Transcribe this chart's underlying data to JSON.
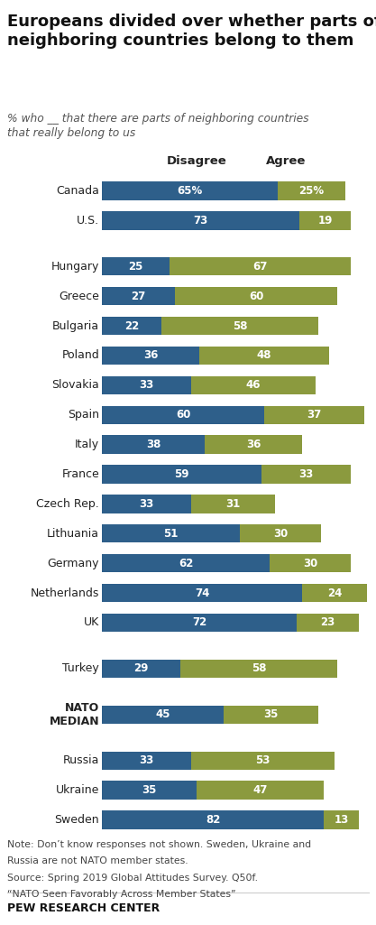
{
  "title": "Europeans divided over whether parts of\nneighboring countries belong to them",
  "subtitle": "% who __ that there are parts of neighboring countries\nthat really belong to us",
  "col_headers": [
    "Disagree",
    "Agree"
  ],
  "blue_color": "#2E5F8A",
  "olive_color": "#8B9A3E",
  "groups": [
    {
      "countries": [
        {
          "name": "Canada",
          "disagree": 65,
          "agree": 25,
          "disagree_label": "65%",
          "agree_label": "25%"
        },
        {
          "name": "U.S.",
          "disagree": 73,
          "agree": 19,
          "disagree_label": "73",
          "agree_label": "19"
        }
      ]
    },
    {
      "countries": [
        {
          "name": "Hungary",
          "disagree": 25,
          "agree": 67,
          "disagree_label": "25",
          "agree_label": "67"
        },
        {
          "name": "Greece",
          "disagree": 27,
          "agree": 60,
          "disagree_label": "27",
          "agree_label": "60"
        },
        {
          "name": "Bulgaria",
          "disagree": 22,
          "agree": 58,
          "disagree_label": "22",
          "agree_label": "58"
        },
        {
          "name": "Poland",
          "disagree": 36,
          "agree": 48,
          "disagree_label": "36",
          "agree_label": "48"
        },
        {
          "name": "Slovakia",
          "disagree": 33,
          "agree": 46,
          "disagree_label": "33",
          "agree_label": "46"
        },
        {
          "name": "Spain",
          "disagree": 60,
          "agree": 37,
          "disagree_label": "60",
          "agree_label": "37"
        },
        {
          "name": "Italy",
          "disagree": 38,
          "agree": 36,
          "disagree_label": "38",
          "agree_label": "36"
        },
        {
          "name": "France",
          "disagree": 59,
          "agree": 33,
          "disagree_label": "59",
          "agree_label": "33"
        },
        {
          "name": "Czech Rep.",
          "disagree": 33,
          "agree": 31,
          "disagree_label": "33",
          "agree_label": "31"
        },
        {
          "name": "Lithuania",
          "disagree": 51,
          "agree": 30,
          "disagree_label": "51",
          "agree_label": "30"
        },
        {
          "name": "Germany",
          "disagree": 62,
          "agree": 30,
          "disagree_label": "62",
          "agree_label": "30"
        },
        {
          "name": "Netherlands",
          "disagree": 74,
          "agree": 24,
          "disagree_label": "74",
          "agree_label": "24"
        },
        {
          "name": "UK",
          "disagree": 72,
          "agree": 23,
          "disagree_label": "72",
          "agree_label": "23"
        }
      ]
    },
    {
      "countries": [
        {
          "name": "Turkey",
          "disagree": 29,
          "agree": 58,
          "disagree_label": "29",
          "agree_label": "58"
        }
      ]
    },
    {
      "countries": [
        {
          "name": "NATO\nMEDIAN",
          "disagree": 45,
          "agree": 35,
          "disagree_label": "45",
          "agree_label": "35",
          "bold": true
        }
      ]
    },
    {
      "countries": [
        {
          "name": "Russia",
          "disagree": 33,
          "agree": 53,
          "disagree_label": "33",
          "agree_label": "53"
        },
        {
          "name": "Ukraine",
          "disagree": 35,
          "agree": 47,
          "disagree_label": "35",
          "agree_label": "47"
        },
        {
          "name": "Sweden",
          "disagree": 82,
          "agree": 13,
          "disagree_label": "82",
          "agree_label": "13"
        }
      ]
    }
  ],
  "note1": "Note: Don’t know responses not shown. Sweden, Ukraine and",
  "note2": "Russia are not NATO member states.",
  "note3": "Source: Spring 2019 Global Attitudes Survey. Q50f.",
  "note4": "“NATO Seen Favorably Across Member States”",
  "source_bold": "PEW RESEARCH CENTER",
  "bar_height": 0.62,
  "text_color": "#222222",
  "note_color": "#444444",
  "header_fontsize": 9.5,
  "label_fontsize": 8.5,
  "country_fontsize": 9,
  "title_fontsize": 13,
  "subtitle_fontsize": 8.8
}
